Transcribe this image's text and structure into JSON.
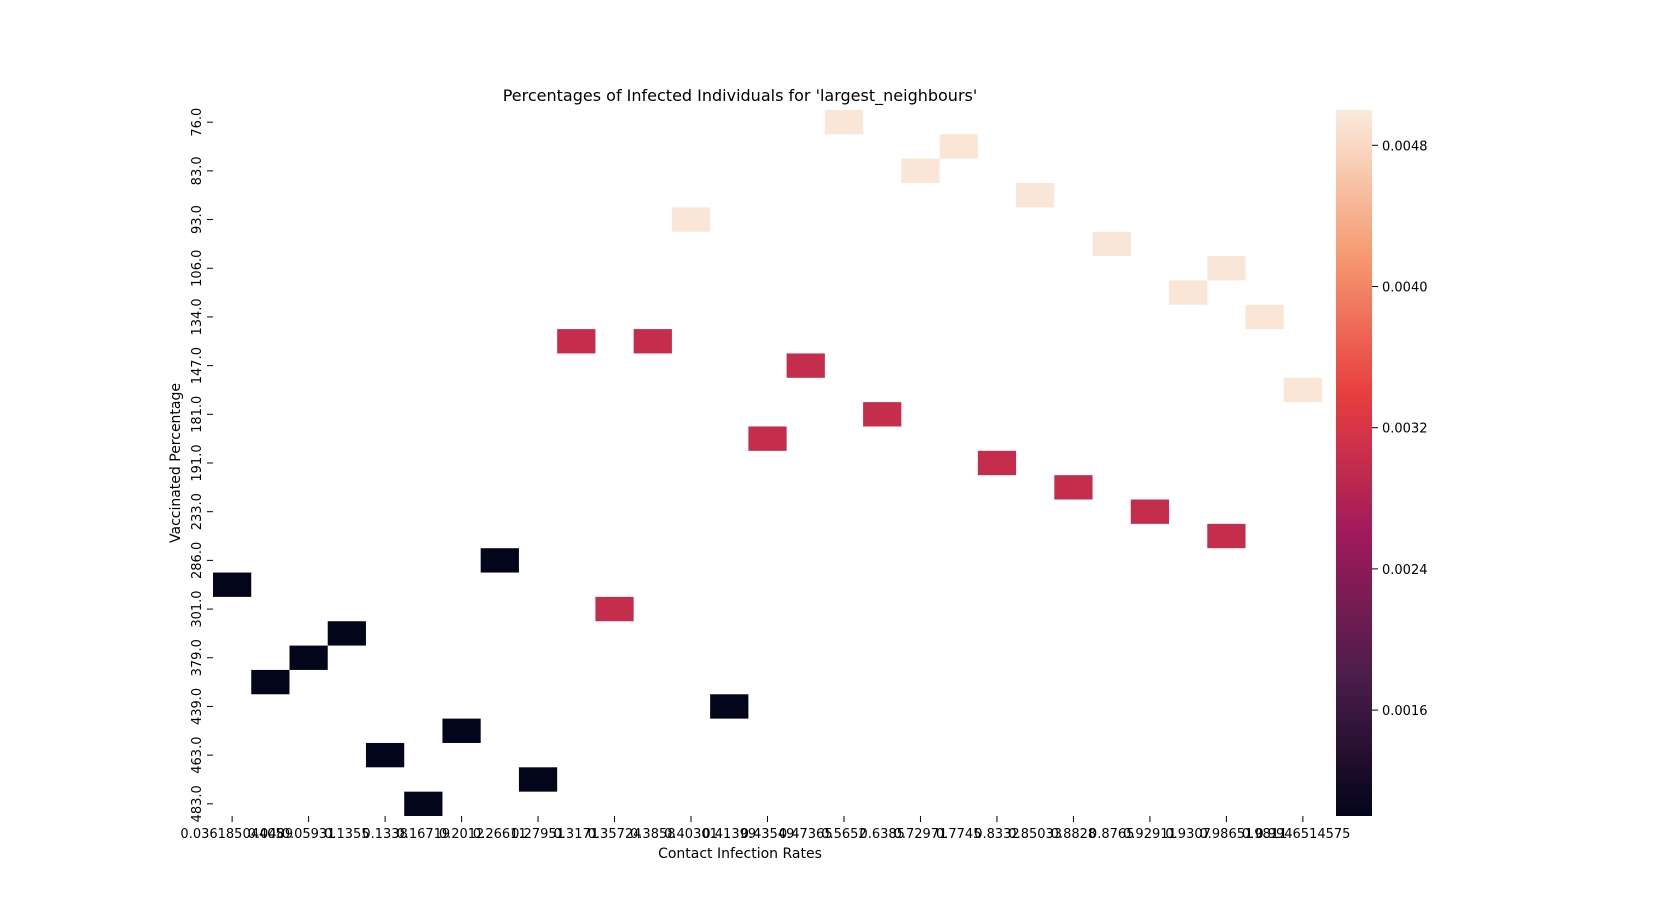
{
  "chart_data": {
    "type": "heatmap",
    "title": "Percentages of Infected Individuals for 'largest_neighbours'",
    "xlabel": "Contact Infection Rates",
    "ylabel": "Vaccinated Percentage",
    "x_tick_labels": [
      "0.03618504405",
      "0.0489",
      "0.05931",
      "0.1355",
      "0.1338",
      "0.16719",
      "0.2012",
      "0.26611",
      "0.27951",
      "0.3171",
      "0.35724",
      "0.3858",
      "0.40301",
      "0.41399",
      "0.43549",
      "0.47365",
      "0.5652",
      "0.6385",
      "0.72971",
      "0.7745",
      "0.8332",
      "0.85033",
      "0.8828",
      "0.8765",
      "0.92911",
      "0.9307",
      "0.98651",
      "0.9811",
      "0.9946514575"
    ],
    "y_tick_labels": [
      "76.0",
      "83.0",
      "93.0",
      "106.0",
      "134.0",
      "147.0",
      "181.0",
      "191.0",
      "233.0",
      "286.0",
      "301.0",
      "379.0",
      "439.0",
      "463.0",
      "483.0"
    ],
    "n_cols": 29,
    "n_rows": 29,
    "cells": [
      {
        "col": 16,
        "row": 0,
        "value": 0.00495
      },
      {
        "col": 19,
        "row": 1,
        "value": 0.00495
      },
      {
        "col": 18,
        "row": 2,
        "value": 0.00495
      },
      {
        "col": 21,
        "row": 3,
        "value": 0.00495
      },
      {
        "col": 12,
        "row": 4,
        "value": 0.00495
      },
      {
        "col": 23,
        "row": 5,
        "value": 0.00495
      },
      {
        "col": 26,
        "row": 6,
        "value": 0.00495
      },
      {
        "col": 25,
        "row": 7,
        "value": 0.00495
      },
      {
        "col": 27,
        "row": 8,
        "value": 0.00495
      },
      {
        "col": 9,
        "row": 9,
        "value": 0.003
      },
      {
        "col": 11,
        "row": 9,
        "value": 0.003
      },
      {
        "col": 15,
        "row": 10,
        "value": 0.003
      },
      {
        "col": 28,
        "row": 11,
        "value": 0.00495
      },
      {
        "col": 17,
        "row": 12,
        "value": 0.003
      },
      {
        "col": 14,
        "row": 13,
        "value": 0.003
      },
      {
        "col": 20,
        "row": 14,
        "value": 0.003
      },
      {
        "col": 22,
        "row": 15,
        "value": 0.003
      },
      {
        "col": 24,
        "row": 16,
        "value": 0.003
      },
      {
        "col": 26,
        "row": 17,
        "value": 0.003
      },
      {
        "col": 7,
        "row": 18,
        "value": 0.001
      },
      {
        "col": 0,
        "row": 19,
        "value": 0.001
      },
      {
        "col": 10,
        "row": 20,
        "value": 0.003
      },
      {
        "col": 3,
        "row": 21,
        "value": 0.001
      },
      {
        "col": 2,
        "row": 22,
        "value": 0.001
      },
      {
        "col": 1,
        "row": 23,
        "value": 0.001
      },
      {
        "col": 13,
        "row": 24,
        "value": 0.001
      },
      {
        "col": 6,
        "row": 25,
        "value": 0.001
      },
      {
        "col": 4,
        "row": 26,
        "value": 0.001
      },
      {
        "col": 8,
        "row": 27,
        "value": 0.001
      },
      {
        "col": 5,
        "row": 28,
        "value": 0.001
      }
    ],
    "colorbar": {
      "vmin": 0.001,
      "vmax": 0.005,
      "colormap": "rocket",
      "tick_labels": [
        "0.0016",
        "0.0024",
        "0.0032",
        "0.0040",
        "0.0048"
      ],
      "tick_values": [
        0.0016,
        0.0024,
        0.0032,
        0.004,
        0.0048
      ],
      "stops": [
        "#03051a",
        "#4c1d4b",
        "#a11a5b",
        "#e83f3f",
        "#f69c73",
        "#faebdd"
      ]
    },
    "grid": false,
    "legend": "colorbar-right"
  }
}
